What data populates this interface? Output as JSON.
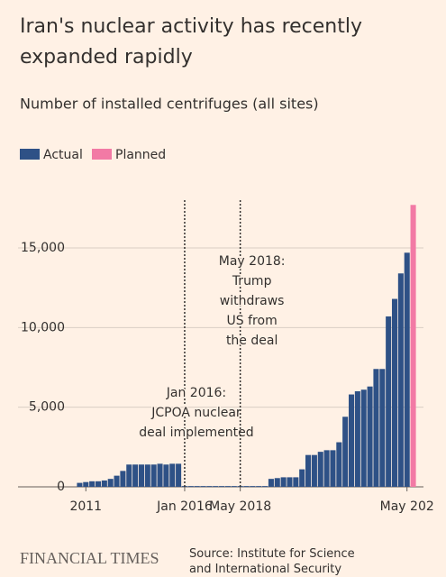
{
  "chart_data": {
    "type": "bar",
    "title": "Iran's nuclear activity has recently expanded rapidly",
    "subtitle": "Number of installed centrifuges (all sites)",
    "categories": [
      null,
      "2011",
      null,
      null,
      null,
      null,
      null,
      null,
      null,
      null,
      null,
      null,
      null,
      null,
      null,
      null,
      null,
      "Jan 2016",
      null,
      null,
      null,
      null,
      null,
      null,
      null,
      null,
      "May 2018",
      null,
      null,
      null,
      null,
      null,
      null,
      null,
      null,
      null,
      null,
      null,
      null,
      null,
      null,
      null,
      null,
      null,
      null,
      null,
      null,
      null,
      null,
      null,
      null,
      null,
      null,
      "May 202",
      null
    ],
    "series": [
      {
        "name": "Actual",
        "color": "#2e5186",
        "values": [
          250,
          300,
          350,
          350,
          400,
          500,
          700,
          1000,
          1400,
          1400,
          1400,
          1400,
          1400,
          1450,
          1400,
          1450,
          1450,
          50,
          50,
          50,
          50,
          50,
          50,
          50,
          50,
          50,
          50,
          50,
          50,
          50,
          50,
          500,
          550,
          600,
          600,
          600,
          1100,
          2000,
          2000,
          2200,
          2300,
          2300,
          2800,
          4400,
          5800,
          6000,
          6100,
          6300,
          7400,
          7400,
          10700,
          11800,
          13400,
          14700,
          null
        ]
      },
      {
        "name": "Planned",
        "color": "#f27aa5",
        "values": [
          null,
          null,
          null,
          null,
          null,
          null,
          null,
          null,
          null,
          null,
          null,
          null,
          null,
          null,
          null,
          null,
          null,
          null,
          null,
          null,
          null,
          null,
          null,
          null,
          null,
          null,
          null,
          null,
          null,
          null,
          null,
          null,
          null,
          null,
          null,
          null,
          null,
          null,
          null,
          null,
          null,
          null,
          null,
          null,
          null,
          null,
          null,
          null,
          null,
          null,
          null,
          null,
          null,
          null,
          17700
        ]
      }
    ],
    "ylim": [
      0,
      18000
    ],
    "yticks": [
      0,
      {
        "value": 5000,
        "label": "5,000"
      },
      {
        "value": 10000,
        "label": "10,000"
      },
      {
        "value": 15000,
        "label": "15,000"
      }
    ],
    "grid": true,
    "annotations": [
      {
        "x": "Jan 2016",
        "lines": [
          "Jan 2016:",
          "JCPOA nuclear",
          "deal implemented"
        ]
      },
      {
        "x": "May 2018",
        "lines": [
          "May 2018:",
          "Trump",
          "withdraws",
          "US from",
          "the deal"
        ]
      }
    ],
    "brand": "FINANCIAL TIMES",
    "source": "Source: Institute for Science and International Security"
  }
}
